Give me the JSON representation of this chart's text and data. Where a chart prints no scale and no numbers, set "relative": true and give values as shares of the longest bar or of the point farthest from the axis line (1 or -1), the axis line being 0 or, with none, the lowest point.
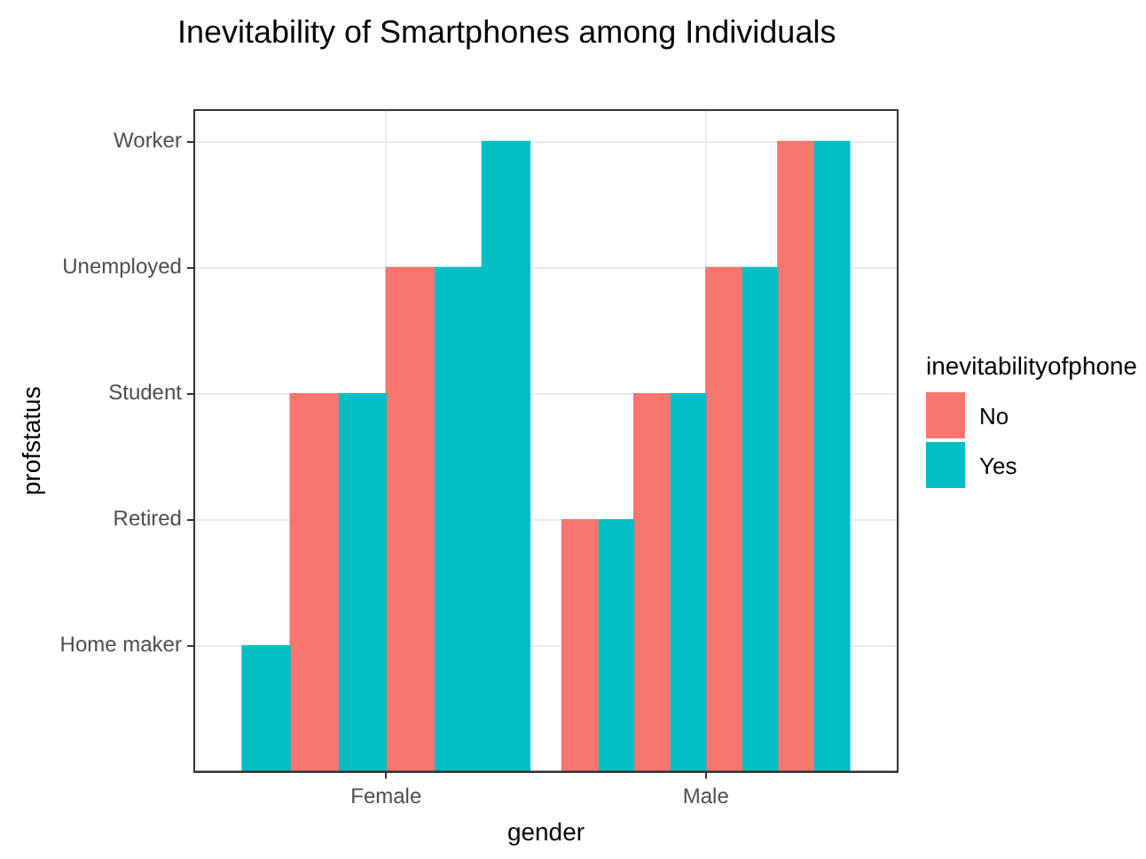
{
  "chart_data": {
    "type": "bar",
    "title": "Inevitability of Smartphones among Individuals",
    "xlabel": "gender",
    "legend_title": "inevitabilityofphone",
    "legend": "right",
    "grid": true,
    "categories": [
      "Female",
      "Male"
    ],
    "relative": true,
    "annotations": [
      "Home maker",
      "Retired",
      "Student",
      "Unemployed",
      "Worker",
      "profstatus"
    ],
    "series": [
      {
        "name": "No",
        "color": "#f8766d",
        "x": [
          "Female",
          "Female",
          "Male",
          "Male",
          "Male",
          "Male"
        ],
        "values": [
          0.6,
          0.8,
          0.4,
          0.6,
          0.8,
          1
        ]
      },
      {
        "name": "Yes",
        "color": "#00bfc4",
        "x": [
          "Female",
          "Female",
          "Female",
          "Female",
          "Male",
          "Male",
          "Male",
          "Male"
        ],
        "values": [
          0.2,
          0.6,
          0.8,
          1,
          0.4,
          0.6,
          0.8,
          1
        ]
      }
    ]
  }
}
